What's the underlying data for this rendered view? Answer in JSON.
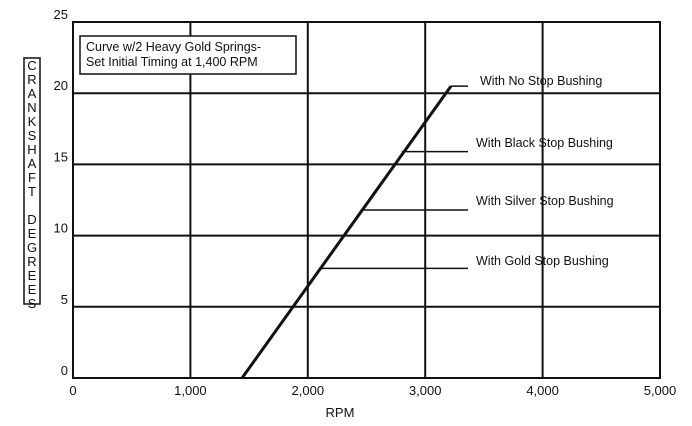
{
  "chart_data": {
    "type": "line",
    "title": "",
    "xlabel": "RPM",
    "ylabel": "CRANKSHAFT DEGREES",
    "xlim": [
      0,
      5000
    ],
    "ylim": [
      0,
      25
    ],
    "xticks": [
      0,
      1000,
      2000,
      3000,
      4000,
      5000
    ],
    "xtick_labels": [
      "0",
      "1,000",
      "2,000",
      "3,000",
      "4,000",
      "5,000"
    ],
    "yticks": [
      0,
      5,
      10,
      15,
      20,
      25
    ],
    "ytick_labels": [
      "0",
      "5",
      "10",
      "15",
      "20",
      "25"
    ],
    "grid": true,
    "legend": null,
    "series": [
      {
        "x": [
          1440,
          3220
        ],
        "y": [
          0,
          20.5
        ]
      }
    ],
    "info_box": {
      "lines": [
        "Curve w/2 Heavy Gold Springs-",
        "Set Initial Timing at 1,400 RPM"
      ]
    },
    "annotations": [
      {
        "text": "With No Stop Bushing",
        "x": 3220,
        "y": 20.5
      },
      {
        "text": "With Black Stop Bushing",
        "x": 2800,
        "y": 15.9
      },
      {
        "text": "With Silver Stop Bushing",
        "x": 2450,
        "y": 11.8
      },
      {
        "text": "With Gold Stop Bushing",
        "x": 2100,
        "y": 7.7
      }
    ]
  }
}
